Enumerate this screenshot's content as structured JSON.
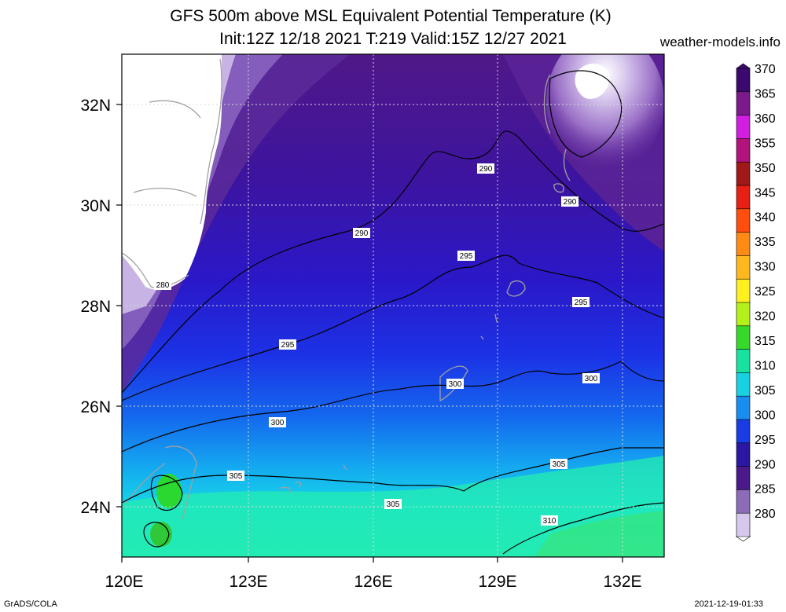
{
  "title": {
    "line1": "GFS 500m above MSL Equivalent Potential Temperature (K)",
    "line2": "Init:12Z 12/18 2021 T:219 Valid:15Z 12/27 2021"
  },
  "brand": "weather-models.info",
  "footer": {
    "left": "GrADS/COLA",
    "right": "2021-12-19-01:33"
  },
  "map": {
    "lon_labels": [
      "120E",
      "123E",
      "126E",
      "129E",
      "132E"
    ],
    "lat_labels": [
      "32N",
      "30N",
      "28N",
      "26N",
      "24N"
    ],
    "contour_labels": [
      "280",
      "290",
      "290",
      "290",
      "295",
      "295",
      "295",
      "300",
      "300",
      "300",
      "305",
      "305",
      "305",
      "310"
    ]
  },
  "colorbar": {
    "labels": [
      "370",
      "365",
      "360",
      "355",
      "350",
      "345",
      "340",
      "335",
      "330",
      "325",
      "320",
      "315",
      "310",
      "305",
      "300",
      "295",
      "290",
      "285",
      "280"
    ],
    "colors": [
      "#3c0a6e",
      "#7a1a8c",
      "#d21ee0",
      "#b2127c",
      "#a01818",
      "#e62012",
      "#ff4e0e",
      "#ff8a14",
      "#ffb81e",
      "#fff01e",
      "#b4f01a",
      "#36d82a",
      "#18e2a0",
      "#18d2e2",
      "#1a8ef0",
      "#1a3ce6",
      "#2a18a4",
      "#4a1a8a",
      "#8c6cb8",
      "#d6c8ec"
    ]
  }
}
